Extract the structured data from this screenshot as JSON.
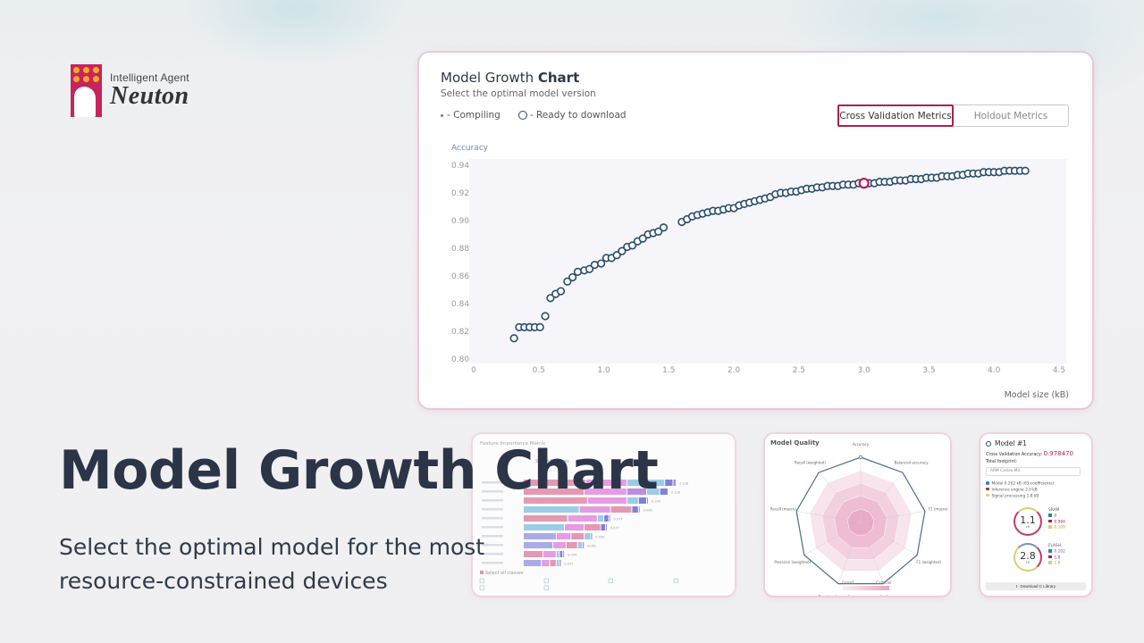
{
  "logo": {
    "subtitle": "Intelligent Agent",
    "name": "Neuton"
  },
  "hero": {
    "title": "Model Growth Chart",
    "subtitle": "Select the optimal model for the most resource-constrained devices"
  },
  "main_card": {
    "title_regular": "Model Growth ",
    "title_bold": "Chart",
    "subtitle": "Select the optimal model version",
    "legend": {
      "compiling": "- Compiling",
      "ready": "- Ready to download"
    },
    "tabs": [
      {
        "label": "Cross Validation Metrics",
        "active": true
      },
      {
        "label": "Holdout Metrics",
        "active": false
      }
    ]
  },
  "chart_data": {
    "type": "scatter",
    "title": "Model Growth Chart",
    "subtitle": "Select the optimal model version",
    "xlabel": "Model size (kB)",
    "ylabel": "Accuracy",
    "xlim": [
      0,
      4.5
    ],
    "ylim": [
      0.8,
      0.94
    ],
    "x_ticks": [
      "0",
      "0.5",
      "1.0",
      "1.5",
      "2.0",
      "2.5",
      "3.0",
      "3.5",
      "4.0",
      "4.5"
    ],
    "y_ticks": [
      "0.80",
      "0.82",
      "0.84",
      "0.86",
      "0.88",
      "0.90",
      "0.92",
      "0.94"
    ],
    "grid": false,
    "legend": [
      "Compiling",
      "Ready to download"
    ],
    "colors": {
      "point": "#2a4c6e",
      "selected": "#c0185a",
      "plot_bg": "#f5f5fa"
    },
    "selected_point": {
      "x": 3.0,
      "y": 0.927
    },
    "series": [
      {
        "name": "Ready to download",
        "points": [
          [
            0.31,
            0.815
          ],
          [
            0.35,
            0.823
          ],
          [
            0.39,
            0.823
          ],
          [
            0.43,
            0.823
          ],
          [
            0.47,
            0.823
          ],
          [
            0.51,
            0.823
          ],
          [
            0.55,
            0.831
          ],
          [
            0.59,
            0.844
          ],
          [
            0.63,
            0.847
          ],
          [
            0.67,
            0.849
          ],
          [
            0.72,
            0.856
          ],
          [
            0.76,
            0.859
          ],
          [
            0.8,
            0.863
          ],
          [
            0.85,
            0.864
          ],
          [
            0.89,
            0.865
          ],
          [
            0.93,
            0.868
          ],
          [
            0.98,
            0.869
          ],
          [
            1.02,
            0.873
          ],
          [
            1.06,
            0.873
          ],
          [
            1.1,
            0.875
          ],
          [
            1.14,
            0.878
          ],
          [
            1.18,
            0.881
          ],
          [
            1.22,
            0.882
          ],
          [
            1.26,
            0.885
          ],
          [
            1.3,
            0.887
          ],
          [
            1.34,
            0.89
          ],
          [
            1.38,
            0.891
          ],
          [
            1.42,
            0.892
          ],
          [
            1.46,
            0.895
          ],
          [
            1.6,
            0.899
          ],
          [
            1.64,
            0.901
          ],
          [
            1.68,
            0.903
          ],
          [
            1.72,
            0.904
          ],
          [
            1.76,
            0.905
          ],
          [
            1.8,
            0.906
          ],
          [
            1.84,
            0.907
          ],
          [
            1.88,
            0.907
          ],
          [
            1.92,
            0.908
          ],
          [
            1.96,
            0.909
          ],
          [
            2.0,
            0.909
          ],
          [
            2.04,
            0.911
          ],
          [
            2.08,
            0.912
          ],
          [
            2.12,
            0.913
          ],
          [
            2.16,
            0.914
          ],
          [
            2.2,
            0.915
          ],
          [
            2.24,
            0.916
          ],
          [
            2.28,
            0.917
          ],
          [
            2.32,
            0.919
          ],
          [
            2.36,
            0.92
          ],
          [
            2.4,
            0.92
          ],
          [
            2.44,
            0.921
          ],
          [
            2.48,
            0.921
          ],
          [
            2.52,
            0.922
          ],
          [
            2.56,
            0.923
          ],
          [
            2.6,
            0.923
          ],
          [
            2.64,
            0.924
          ],
          [
            2.68,
            0.924
          ],
          [
            2.72,
            0.925
          ],
          [
            2.76,
            0.925
          ],
          [
            2.8,
            0.925
          ],
          [
            2.84,
            0.926
          ],
          [
            2.88,
            0.926
          ],
          [
            2.92,
            0.926
          ],
          [
            2.96,
            0.927
          ],
          [
            3.04,
            0.927
          ],
          [
            3.08,
            0.927
          ],
          [
            3.12,
            0.928
          ],
          [
            3.16,
            0.928
          ],
          [
            3.2,
            0.928
          ],
          [
            3.24,
            0.929
          ],
          [
            3.28,
            0.929
          ],
          [
            3.32,
            0.929
          ],
          [
            3.36,
            0.93
          ],
          [
            3.4,
            0.93
          ],
          [
            3.44,
            0.93
          ],
          [
            3.48,
            0.931
          ],
          [
            3.52,
            0.931
          ],
          [
            3.56,
            0.931
          ],
          [
            3.6,
            0.932
          ],
          [
            3.64,
            0.932
          ],
          [
            3.68,
            0.932
          ],
          [
            3.72,
            0.933
          ],
          [
            3.76,
            0.933
          ],
          [
            3.8,
            0.934
          ],
          [
            3.84,
            0.934
          ],
          [
            3.88,
            0.934
          ],
          [
            3.92,
            0.935
          ],
          [
            3.96,
            0.935
          ],
          [
            4.0,
            0.935
          ],
          [
            4.04,
            0.935
          ],
          [
            4.08,
            0.936
          ],
          [
            4.12,
            0.936
          ],
          [
            4.16,
            0.936
          ],
          [
            4.2,
            0.936
          ],
          [
            4.24,
            0.936
          ]
        ]
      }
    ]
  },
  "feature_importance": {
    "title": "Feature Importance Matrix",
    "select_label": "Select features",
    "select_all_label": "Select all classes",
    "rows": [
      {
        "value": "0.128",
        "segs": [
          38,
          25,
          23,
          5,
          2
        ]
      },
      {
        "value": "0.118",
        "segs": [
          37,
          26,
          12,
          8,
          5
        ]
      },
      {
        "value": "0.100",
        "segs": [
          39,
          24,
          7,
          5,
          1
        ]
      },
      {
        "value": "0.096",
        "segs": [
          34,
          19,
          13,
          4,
          1
        ]
      },
      {
        "value": "0.077",
        "segs": [
          27,
          18,
          4,
          3,
          1
        ]
      },
      {
        "value": "0.077",
        "segs": [
          25,
          12,
          10,
          3,
          1
        ]
      },
      {
        "value": "0.059",
        "segs": [
          20,
          9,
          8,
          4,
          1
        ]
      },
      {
        "value": "0.061",
        "segs": [
          18,
          8,
          7,
          3,
          1
        ]
      },
      {
        "value": "0.034",
        "segs": [
          12,
          8,
          2,
          2,
          1
        ]
      },
      {
        "value": "0.037",
        "segs": [
          11,
          5,
          4,
          2,
          1
        ]
      }
    ]
  },
  "model_quality": {
    "title": "Model Quality",
    "axes": [
      "Accuracy",
      "Balanced accuracy",
      "F1 (macro)",
      "F1 (weighted)",
      "LogLoss",
      "Precision (macro)",
      "Precision (weighted)",
      "Recall (macro)",
      "Recall (weighted)"
    ],
    "scale_good": "Good",
    "scale_critical": "Critical"
  },
  "model_card": {
    "title": "Model #1",
    "accuracy_label": "Cross Validation Accuracy:",
    "accuracy_value": "0.978470",
    "footprint_label": "Total footprint:",
    "device": "ARM Cortex-M4",
    "rows": [
      {
        "label": "Model",
        "value": "0.202 kB",
        "extra": "(63 coefficients)",
        "color": "#2e7fb0"
      },
      {
        "label": "Inference engine",
        "value": "2.0 kB",
        "extra": "",
        "color": "#b01d55"
      },
      {
        "label": "Signal processing",
        "value": "1.8 kB",
        "extra": "",
        "color": "#d8d070"
      }
    ],
    "sram": {
      "label": "SRAM",
      "total": "1.1",
      "unit": "kB",
      "values": [
        "0",
        "0.984",
        "0.109"
      ]
    },
    "flash": {
      "label": "FLASH",
      "total": "2.8",
      "unit": "kB",
      "values": [
        "0.202",
        "1.0",
        "1.6"
      ]
    },
    "download_label": "Download C Library"
  }
}
